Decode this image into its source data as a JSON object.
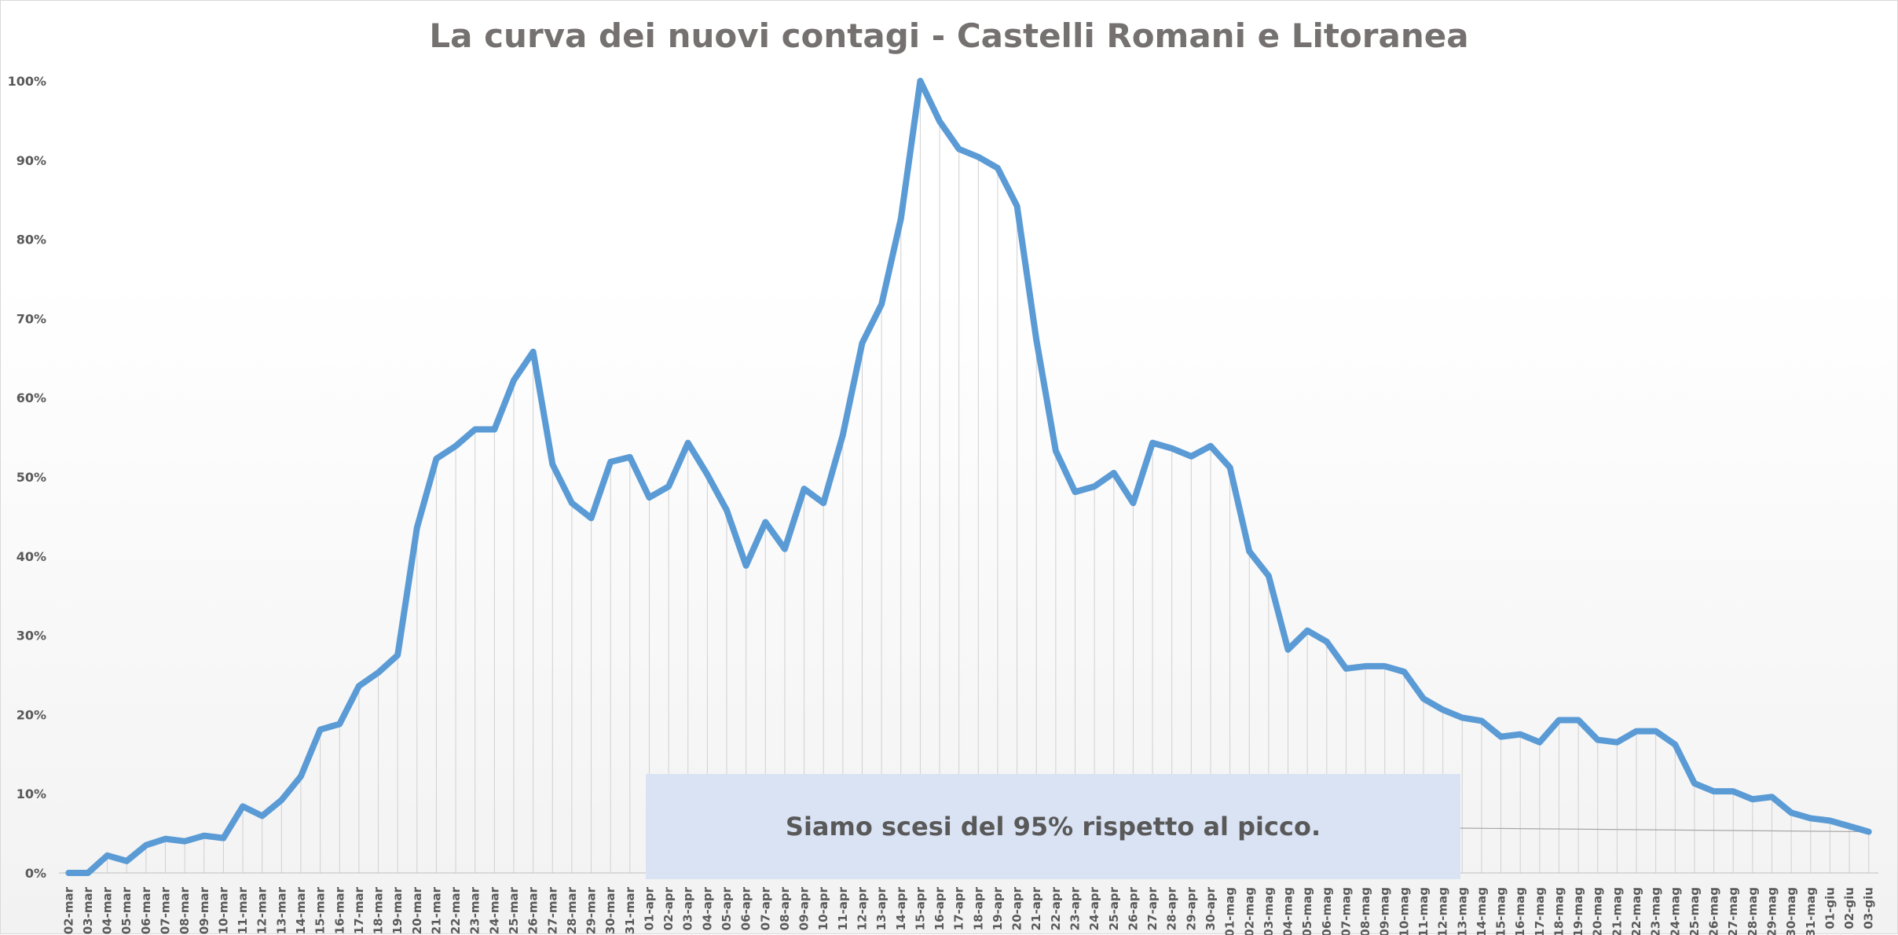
{
  "chart_data": {
    "type": "line",
    "title": "La curva dei nuovi contagi - Castelli Romani e Litoranea",
    "xlabel": "",
    "ylabel": "",
    "ylim": [
      0,
      100
    ],
    "y_ticks": [
      "0%",
      "10%",
      "20%",
      "30%",
      "40%",
      "50%",
      "60%",
      "70%",
      "80%",
      "90%",
      "100%"
    ],
    "grid": "vertical drop lines",
    "legend": "none",
    "line_color": "#5b9bd5",
    "categories": [
      "02-mar",
      "03-mar",
      "04-mar",
      "05-mar",
      "06-mar",
      "07-mar",
      "08-mar",
      "09-mar",
      "10-mar",
      "11-mar",
      "12-mar",
      "13-mar",
      "14-mar",
      "15-mar",
      "16-mar",
      "17-mar",
      "18-mar",
      "19-mar",
      "20-mar",
      "21-mar",
      "22-mar",
      "23-mar",
      "24-mar",
      "25-mar",
      "26-mar",
      "27-mar",
      "28-mar",
      "29-mar",
      "30-mar",
      "31-mar",
      "01-apr",
      "02-apr",
      "03-apr",
      "04-apr",
      "05-apr",
      "06-apr",
      "07-apr",
      "08-apr",
      "09-apr",
      "10-apr",
      "11-apr",
      "12-apr",
      "13-apr",
      "14-apr",
      "15-apr",
      "16-apr",
      "17-apr",
      "18-apr",
      "19-apr",
      "20-apr",
      "21-apr",
      "22-apr",
      "23-apr",
      "24-apr",
      "25-apr",
      "26-apr",
      "27-apr",
      "28-apr",
      "29-apr",
      "30-apr",
      "01-mag",
      "02-mag",
      "03-mag",
      "04-mag",
      "05-mag",
      "06-mag",
      "07-mag",
      "08-mag",
      "09-mag",
      "10-mag",
      "11-mag",
      "12-mag",
      "13-mag",
      "14-mag",
      "15-mag",
      "16-mag",
      "17-mag",
      "18-mag",
      "19-mag",
      "20-mag",
      "21-mag",
      "22-mag",
      "23-mag",
      "24-mag",
      "25-mag",
      "26-mag",
      "27-mag",
      "28-mag",
      "29-mag",
      "30-mag",
      "31-mag",
      "01-giu",
      "02-giu",
      "03-giu"
    ],
    "values": [
      0,
      0,
      2.2,
      1.5,
      3.5,
      4.3,
      4,
      4.7,
      4.4,
      8.4,
      7.2,
      9.2,
      12.2,
      18.1,
      18.8,
      23.6,
      25.3,
      27.5,
      43.6,
      52.3,
      53.9,
      56,
      56,
      62.2,
      65.8,
      51.6,
      46.7,
      44.8,
      51.9,
      52.5,
      47.4,
      48.8,
      54.3,
      50.3,
      45.8,
      38.8,
      44.3,
      40.9,
      48.5,
      46.7,
      55.3,
      66.9,
      71.8,
      82.6,
      100,
      94.9,
      91.4,
      90.4,
      89,
      84.2,
      67.3,
      53.3,
      48.1,
      48.8,
      50.5,
      46.7,
      54.3,
      53.6,
      52.6,
      53.9,
      51.2,
      40.6,
      37.5,
      28.2,
      30.6,
      29.2,
      25.8,
      26.1,
      26.1,
      25.4,
      22,
      20.6,
      19.6,
      19.2,
      17.2,
      17.5,
      16.5,
      19.3,
      19.3,
      16.8,
      16.5,
      17.9,
      17.9,
      16.2,
      11.3,
      10.3,
      10.3,
      9.3,
      9.6,
      7.6,
      6.9,
      6.6,
      5.9,
      5.2
    ]
  },
  "annotation": {
    "text": "Siamo scesi del 95% rispetto al picco.",
    "fill": "#dae3f3"
  }
}
